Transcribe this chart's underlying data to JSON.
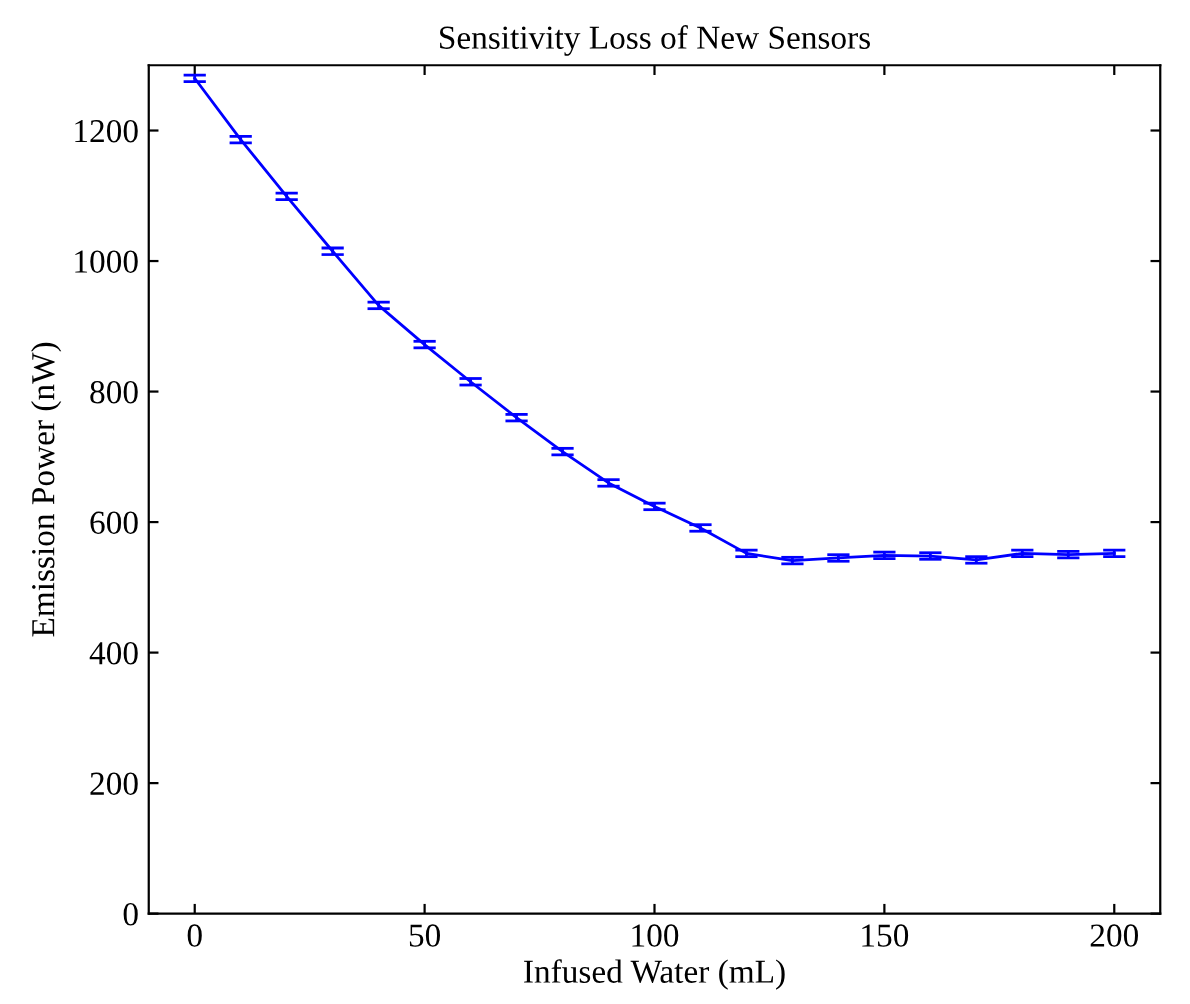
{
  "chart_data": {
    "type": "line",
    "title": "Sensitivity Loss of New Sensors",
    "xlabel": "Infused Water (mL)",
    "ylabel": "Emission Power (nW)",
    "x": [
      0,
      10,
      20,
      30,
      40,
      50,
      60,
      70,
      80,
      90,
      100,
      110,
      120,
      130,
      140,
      150,
      160,
      170,
      180,
      190,
      200
    ],
    "series": [
      {
        "color": "#0000ff",
        "values": [
          1280,
          1186,
          1099,
          1015,
          932,
          872,
          815,
          760,
          708,
          660,
          624,
          591,
          552,
          541,
          545,
          549,
          548,
          542,
          552,
          550,
          552
        ],
        "errors": [
          5,
          5,
          5,
          5,
          5,
          5,
          5,
          5,
          5,
          5,
          5,
          5,
          5,
          5,
          5,
          5,
          5,
          5,
          5,
          5,
          5
        ]
      }
    ],
    "xlim": [
      -10,
      210
    ],
    "xticks": [
      0,
      50,
      100,
      150,
      200
    ],
    "ylim": [
      0,
      1300
    ],
    "yticks": [
      0,
      200,
      400,
      600,
      800,
      1000,
      1200
    ],
    "grid": false,
    "legend": false,
    "marker": "none",
    "line_style": "solid"
  }
}
